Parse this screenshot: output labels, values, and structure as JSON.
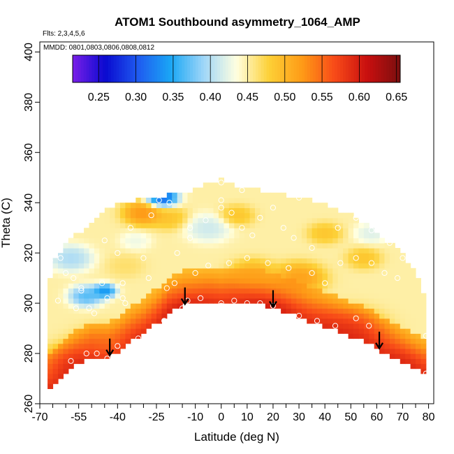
{
  "chart_data": {
    "type": "heatmap",
    "title": "ATOM1 Southbound asymmetry_1064_AMP",
    "annotations": {
      "flights": "Flts: 2,3,4,5,6",
      "dates": "MMDD: 0801,0803,0806,0808,0812"
    },
    "xlabel": "Latitude (deg N)",
    "ylabel": "Theta (C)",
    "xlim": [
      -70,
      82
    ],
    "ylim": [
      260,
      404
    ],
    "x_ticks": [
      -70,
      -55,
      -40,
      -25,
      -10,
      0,
      10,
      20,
      30,
      40,
      50,
      60,
      70,
      80
    ],
    "x_minor_ticks": [
      -65,
      -60,
      -50,
      -45,
      -35,
      -30,
      -20,
      -15,
      -5,
      5,
      15,
      25,
      35,
      45,
      55,
      65,
      75
    ],
    "y_ticks": [
      260,
      280,
      300,
      320,
      340,
      360,
      380,
      400
    ],
    "colorbar": {
      "range": [
        0.215,
        0.655
      ],
      "ticks": [
        0.25,
        0.3,
        0.35,
        0.4,
        0.45,
        0.5,
        0.55,
        0.6,
        0.65
      ],
      "tick_labels": [
        "0.25",
        "0.30",
        "0.35",
        "0.40",
        "0.45",
        "0.50",
        "0.55",
        "0.60",
        "0.65"
      ],
      "colors": [
        "#7a1fe8",
        "#0a0ad0",
        "#1f5bf0",
        "#1aa7f5",
        "#9fd6f8",
        "#ffffe0",
        "#fdd036",
        "#fe9b17",
        "#f84a18",
        "#c80f0f",
        "#7a0f0f"
      ]
    },
    "field": {
      "lat_extent": [
        -67,
        79
      ],
      "lower_boundary": [
        [
          -67,
          266
        ],
        [
          -64,
          268
        ],
        [
          -60,
          272
        ],
        [
          -55,
          276
        ],
        [
          -50,
          278.5
        ],
        [
          -44,
          278
        ],
        [
          -40,
          281
        ],
        [
          -35,
          285
        ],
        [
          -30,
          288
        ],
        [
          -25,
          292
        ],
        [
          -20,
          297
        ],
        [
          -15,
          299
        ],
        [
          -10,
          299.5
        ],
        [
          -5,
          300
        ],
        [
          0,
          299.5
        ],
        [
          5,
          300
        ],
        [
          10,
          300
        ],
        [
          15,
          299.5
        ],
        [
          20,
          298
        ],
        [
          25,
          296.5
        ],
        [
          30,
          294.5
        ],
        [
          35,
          292.5
        ],
        [
          40,
          291
        ],
        [
          45,
          289
        ],
        [
          50,
          287
        ],
        [
          55,
          285
        ],
        [
          60,
          282
        ],
        [
          65,
          279.5
        ],
        [
          70,
          277
        ],
        [
          75,
          274
        ],
        [
          79,
          272
        ]
      ],
      "upper_boundary": [
        [
          -67,
          306
        ],
        [
          -64,
          317
        ],
        [
          -60,
          324
        ],
        [
          -55,
          328
        ],
        [
          -50,
          332
        ],
        [
          -45,
          337
        ],
        [
          -40,
          339
        ],
        [
          -35,
          340.5
        ],
        [
          -30,
          341.5
        ],
        [
          -25,
          342.5
        ],
        [
          -20,
          343
        ],
        [
          -15,
          344
        ],
        [
          -10,
          345.5
        ],
        [
          -5,
          348
        ],
        [
          0,
          349
        ],
        [
          5,
          347
        ],
        [
          10,
          346
        ],
        [
          15,
          345
        ],
        [
          20,
          344
        ],
        [
          25,
          343
        ],
        [
          30,
          342
        ],
        [
          35,
          341
        ],
        [
          40,
          340
        ],
        [
          45,
          337
        ],
        [
          50,
          335
        ],
        [
          55,
          332
        ],
        [
          60,
          328
        ],
        [
          65,
          324
        ],
        [
          70,
          320
        ],
        [
          75,
          312
        ],
        [
          79,
          300
        ]
      ],
      "high_centers": [
        [
          -12,
          296,
          0.64,
          45
        ],
        [
          16,
          295,
          0.65,
          60
        ],
        [
          -56,
          275,
          0.6,
          90
        ],
        [
          -44,
          282,
          0.55,
          90
        ],
        [
          48,
          288,
          0.6,
          110
        ],
        [
          68,
          275,
          0.6,
          55
        ],
        [
          30,
          310,
          0.54,
          55
        ],
        [
          12,
          312,
          0.52,
          45
        ],
        [
          -30,
          336,
          0.55,
          35
        ],
        [
          -20,
          334,
          0.5,
          30
        ],
        [
          6,
          335,
          0.5,
          25
        ],
        [
          40,
          328,
          0.5,
          25
        ],
        [
          55,
          318,
          0.5,
          25
        ],
        [
          -37,
          315,
          0.47,
          30
        ]
      ],
      "low_centers": [
        [
          -23,
          342,
          0.26,
          22
        ],
        [
          -52,
          303,
          0.34,
          25
        ],
        [
          -45,
          305,
          0.3,
          12
        ],
        [
          -58,
          318,
          0.38,
          40
        ],
        [
          -5,
          330,
          0.4,
          45
        ],
        [
          58,
          328,
          0.41,
          25
        ],
        [
          -33,
          325,
          0.42,
          20
        ]
      ],
      "background_value": 0.45
    },
    "observation_points": [
      [
        -58,
        277
      ],
      [
        -52,
        280
      ],
      [
        -48,
        280
      ],
      [
        -44,
        278
      ],
      [
        -40,
        283
      ],
      [
        -32,
        286
      ],
      [
        -22,
        293
      ],
      [
        -15,
        298
      ],
      [
        -13,
        301
      ],
      [
        -8,
        302
      ],
      [
        0,
        300
      ],
      [
        0,
        299
      ],
      [
        5,
        301
      ],
      [
        10,
        300
      ],
      [
        15,
        300
      ],
      [
        20,
        299
      ],
      [
        30,
        295
      ],
      [
        37,
        293
      ],
      [
        44,
        291
      ],
      [
        52,
        294
      ],
      [
        57,
        291
      ],
      [
        79,
        287
      ],
      [
        79,
        272
      ],
      [
        -56,
        298
      ],
      [
        -54,
        305
      ],
      [
        -51,
        298
      ],
      [
        -49,
        296
      ],
      [
        -46,
        308
      ],
      [
        -44,
        302
      ],
      [
        -38,
        302
      ],
      [
        -37,
        300
      ],
      [
        -28,
        310
      ],
      [
        -21,
        306
      ],
      [
        -18,
        308
      ],
      [
        -10,
        312
      ],
      [
        -5,
        315
      ],
      [
        3,
        316
      ],
      [
        10,
        318
      ],
      [
        18,
        316
      ],
      [
        26,
        314
      ],
      [
        35,
        312
      ],
      [
        40,
        308
      ],
      [
        46,
        316
      ],
      [
        52,
        318
      ],
      [
        58,
        316
      ],
      [
        63,
        312
      ],
      [
        68,
        310
      ],
      [
        -60,
        312
      ],
      [
        -57,
        310
      ],
      [
        -54,
        306
      ],
      [
        -62,
        318
      ],
      [
        -45,
        325
      ],
      [
        -35,
        330
      ],
      [
        -27,
        335
      ],
      [
        -24,
        341
      ],
      [
        -20,
        340
      ],
      [
        -17,
        320
      ],
      [
        -12,
        330
      ],
      [
        -6,
        333
      ],
      [
        0,
        338
      ],
      [
        0,
        341
      ],
      [
        0,
        348
      ],
      [
        4,
        336
      ],
      [
        8,
        330
      ],
      [
        12,
        327
      ],
      [
        15,
        334
      ],
      [
        20,
        338
      ],
      [
        24,
        330
      ],
      [
        28,
        326
      ],
      [
        35,
        322
      ],
      [
        45,
        330
      ],
      [
        52,
        334
      ],
      [
        58,
        329
      ],
      [
        65,
        324
      ],
      [
        70,
        318
      ],
      [
        -40,
        320
      ],
      [
        -30,
        318
      ],
      [
        -8,
        349
      ],
      [
        8,
        345
      ],
      [
        18,
        347
      ],
      [
        30,
        342
      ],
      [
        -45,
        343
      ],
      [
        -63,
        301
      ],
      [
        -66,
        317
      ],
      [
        -38,
        308
      ],
      [
        -12,
        326
      ]
    ],
    "arrows": [
      -43,
      -14,
      20,
      61
    ]
  }
}
